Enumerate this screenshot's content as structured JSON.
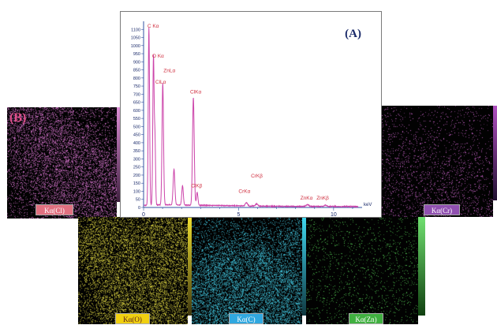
{
  "panel_a_label": "(A)",
  "panel_b_label": "(B)",
  "maps": [
    {
      "id": "cl",
      "label": "Kα(Cl)",
      "color": "#d070c8",
      "badge_bg": "#e07080",
      "badge_fg": "#ffffff",
      "density": 0.55
    },
    {
      "id": "cr",
      "label": "Kα(Cr)",
      "color": "#c060c0",
      "badge_bg": "#9050b0",
      "badge_fg": "#ffffff",
      "density": 0.18
    },
    {
      "id": "o",
      "label": "Kα(O)",
      "color": "#d8d040",
      "badge_bg": "#f0d010",
      "badge_fg": "#5a2020",
      "density": 0.6
    },
    {
      "id": "c",
      "label": "Kα(C)",
      "color": "#40c0d8",
      "badge_bg": "#30a8e0",
      "badge_fg": "#ffffff",
      "density": 0.7
    },
    {
      "id": "zn",
      "label": "Kα(Zn)",
      "color": "#50c050",
      "badge_bg": "#40b040",
      "badge_fg": "#ffffff",
      "density": 0.1
    }
  ],
  "chart_data": {
    "type": "line",
    "title": "(A)",
    "xlabel": "keV",
    "ylabel": "",
    "xlim": [
      0,
      11.5
    ],
    "ylim": [
      0,
      1150
    ],
    "xticks": [
      0,
      5,
      10
    ],
    "yticks": [
      0,
      50,
      100,
      150,
      200,
      250,
      300,
      350,
      400,
      450,
      500,
      550,
      600,
      650,
      700,
      750,
      800,
      850,
      900,
      950,
      1000,
      1050,
      1100
    ],
    "grid": false,
    "line_color": "#cc44aa",
    "baseline": 10,
    "peaks": [
      {
        "x": 0.28,
        "y": 1095,
        "w": 0.035
      },
      {
        "x": 0.52,
        "y": 920,
        "w": 0.035
      },
      {
        "x": 0.6,
        "y": 390,
        "w": 0.03
      },
      {
        "x": 1.01,
        "y": 750,
        "w": 0.04
      },
      {
        "x": 1.6,
        "y": 220,
        "w": 0.045
      },
      {
        "x": 2.05,
        "y": 120,
        "w": 0.04
      },
      {
        "x": 2.62,
        "y": 665,
        "w": 0.045
      },
      {
        "x": 2.82,
        "y": 80,
        "w": 0.04
      },
      {
        "x": 5.41,
        "y": 20,
        "w": 0.06
      },
      {
        "x": 5.95,
        "y": 14,
        "w": 0.06
      },
      {
        "x": 8.63,
        "y": 10,
        "w": 0.07
      },
      {
        "x": 9.57,
        "y": 8,
        "w": 0.07
      }
    ],
    "annotations": [
      {
        "text": "C Kα",
        "x": 0.2,
        "y": 1110
      },
      {
        "text": "O Kα",
        "x": 0.45,
        "y": 925
      },
      {
        "text": "ClLα",
        "x": 0.62,
        "y": 765
      },
      {
        "text": "ZnLα",
        "x": 1.05,
        "y": 835
      },
      {
        "text": "ClKα",
        "x": 2.45,
        "y": 705
      },
      {
        "text": "ClKβ",
        "x": 2.5,
        "y": 125
      },
      {
        "text": "CrKα",
        "x": 5.0,
        "y": 90
      },
      {
        "text": "CrKβ",
        "x": 5.65,
        "y": 185
      },
      {
        "text": "ZnKα",
        "x": 8.25,
        "y": 48
      },
      {
        "text": "ZnKβ",
        "x": 9.1,
        "y": 48
      }
    ]
  }
}
